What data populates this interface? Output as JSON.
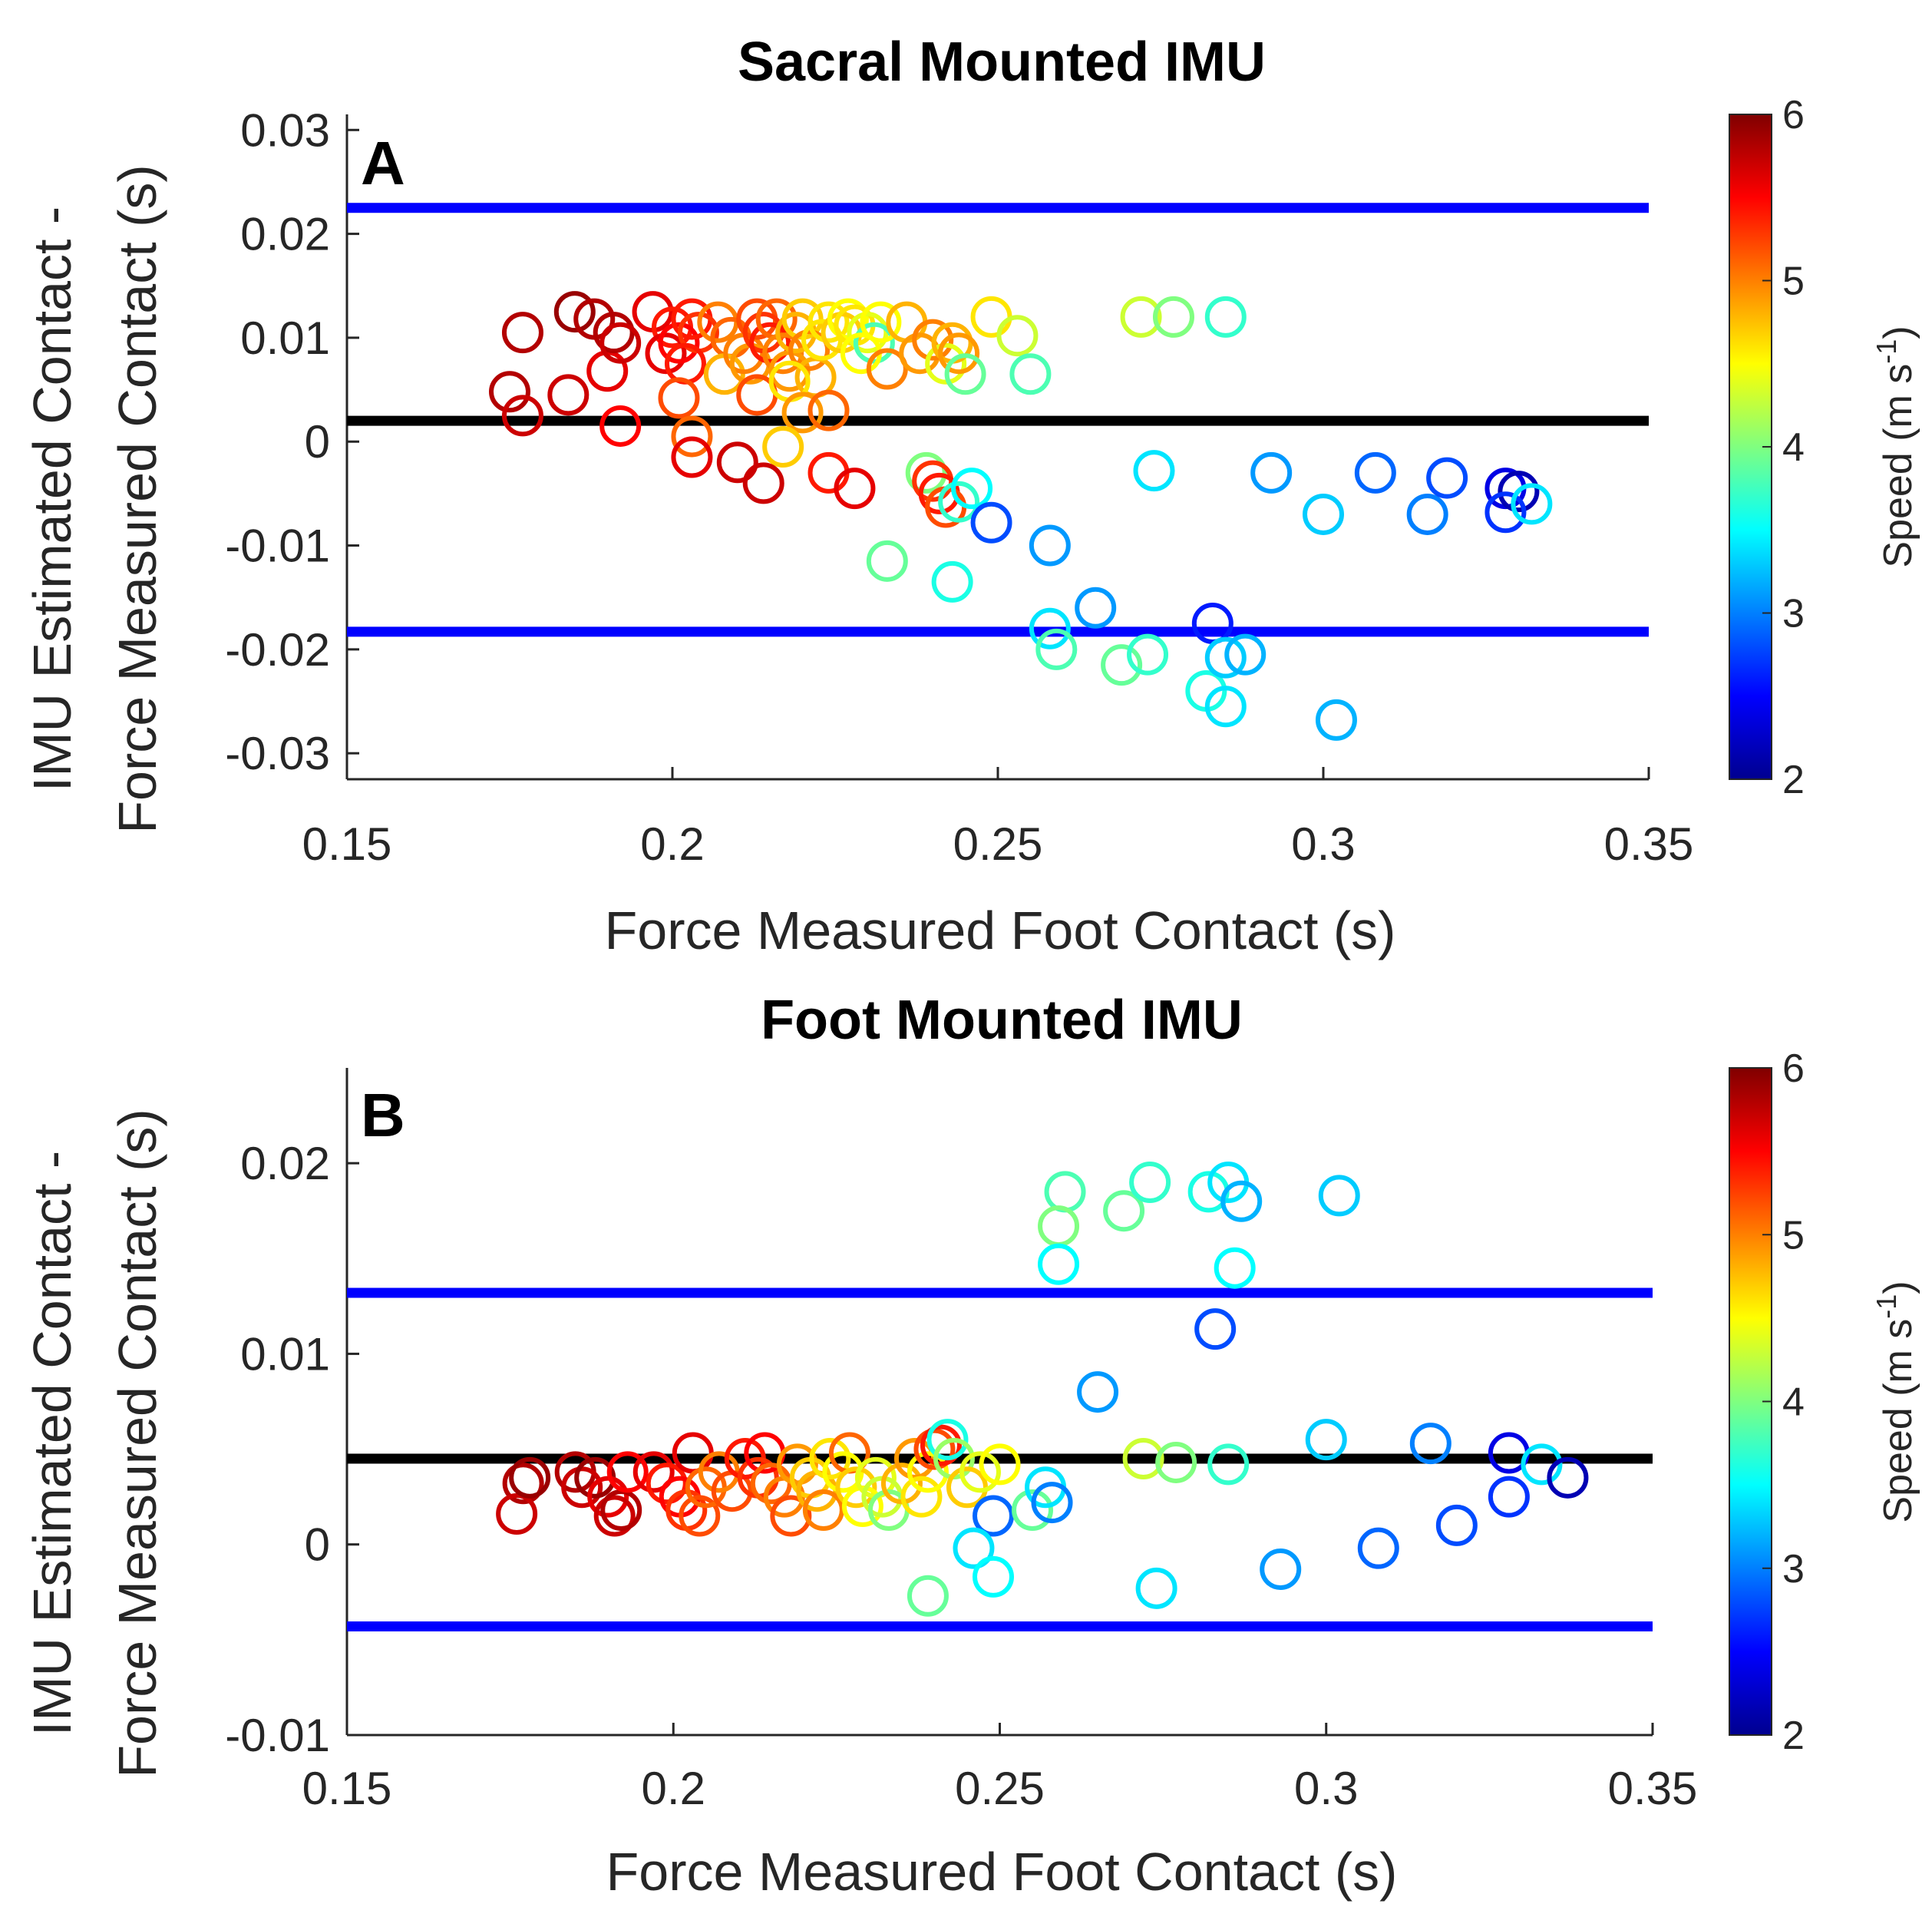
{
  "chart_data": [
    {
      "type": "scatter",
      "panel_letter": "A",
      "title": "Sacral Mounted IMU",
      "xlabel": "Force Measured Foot Contact (s)",
      "ylabel_line1": "IMU Estimated Contact -",
      "ylabel_line2": "Force Measured Contact (s)",
      "xlim": [
        0.15,
        0.35
      ],
      "ylim": [
        -0.0325,
        0.0315
      ],
      "xticks": [
        0.15,
        0.2,
        0.25,
        0.3,
        0.35
      ],
      "xtick_labels": [
        "0.15",
        "0.2",
        "0.25",
        "0.3",
        "0.35"
      ],
      "yticks": [
        -0.03,
        -0.02,
        -0.01,
        0,
        0.01,
        0.02,
        0.03
      ],
      "ytick_labels": [
        "-0.03",
        "-0.02",
        "-0.01",
        "0",
        "0.01",
        "0.02",
        "0.03"
      ],
      "reference_lines": [
        {
          "name": "upper-limit",
          "y": 0.0225,
          "color": "#0000ff"
        },
        {
          "name": "mean-bias",
          "y": 0.002,
          "color": "#000000"
        },
        {
          "name": "lower-limit",
          "y": -0.0183,
          "color": "#0000ff"
        }
      ],
      "colorbar": {
        "label": "Speed (m s",
        "label_sup": "-1",
        "label_close": ")",
        "min": 2,
        "max": 6,
        "ticks": [
          "2",
          "3",
          "4",
          "5",
          "6"
        ]
      },
      "points": [
        [
          0.177,
          0.0105,
          5.8
        ],
        [
          0.175,
          0.0048,
          5.8
        ],
        [
          0.177,
          0.0025,
          5.7
        ],
        [
          0.185,
          0.0125,
          5.9
        ],
        [
          0.188,
          0.0118,
          5.8
        ],
        [
          0.184,
          0.0045,
          5.7
        ],
        [
          0.19,
          0.0068,
          5.6
        ],
        [
          0.191,
          0.0105,
          5.8
        ],
        [
          0.192,
          0.0095,
          5.7
        ],
        [
          0.192,
          0.0015,
          5.5
        ],
        [
          0.197,
          0.0125,
          5.6
        ],
        [
          0.2,
          0.011,
          5.4
        ],
        [
          0.199,
          0.0085,
          5.6
        ],
        [
          0.201,
          0.0095,
          5.5
        ],
        [
          0.203,
          0.0118,
          5.4
        ],
        [
          0.204,
          0.0105,
          5.3
        ],
        [
          0.202,
          0.0075,
          5.4
        ],
        [
          0.201,
          0.0042,
          5.2
        ],
        [
          0.203,
          0.0005,
          5.1
        ],
        [
          0.203,
          -0.0015,
          5.6
        ],
        [
          0.207,
          0.0115,
          5.0
        ],
        [
          0.209,
          0.01,
          5.1
        ],
        [
          0.208,
          0.0065,
          4.8
        ],
        [
          0.211,
          0.0085,
          5.0
        ],
        [
          0.212,
          0.0075,
          4.9
        ],
        [
          0.213,
          0.0118,
          5.2
        ],
        [
          0.214,
          0.0105,
          5.3
        ],
        [
          0.215,
          0.0095,
          5.4
        ],
        [
          0.216,
          0.0118,
          5.1
        ],
        [
          0.217,
          0.0085,
          5.0
        ],
        [
          0.218,
          0.0068,
          4.9
        ],
        [
          0.219,
          0.0105,
          4.8
        ],
        [
          0.22,
          0.0118,
          4.7
        ],
        [
          0.221,
          0.0088,
          5.0
        ],
        [
          0.222,
          0.0062,
          4.8
        ],
        [
          0.223,
          0.0098,
          4.6
        ],
        [
          0.224,
          0.0115,
          4.6
        ],
        [
          0.226,
          0.0105,
          4.7
        ],
        [
          0.227,
          0.0118,
          4.5
        ],
        [
          0.228,
          0.0112,
          4.6
        ],
        [
          0.23,
          0.0105,
          4.4
        ],
        [
          0.231,
          0.0095,
          3.8
        ],
        [
          0.229,
          0.0085,
          4.5
        ],
        [
          0.233,
          0.007,
          5.0
        ],
        [
          0.232,
          0.0115,
          4.5
        ],
        [
          0.236,
          0.0115,
          4.8
        ],
        [
          0.238,
          0.0085,
          4.9
        ],
        [
          0.24,
          0.0098,
          5.0
        ],
        [
          0.242,
          0.0075,
          4.4
        ],
        [
          0.243,
          0.0095,
          4.8
        ],
        [
          0.244,
          0.0085,
          4.9
        ],
        [
          0.245,
          0.0065,
          3.9
        ],
        [
          0.249,
          0.012,
          4.6
        ],
        [
          0.253,
          0.0102,
          4.3
        ],
        [
          0.255,
          0.0065,
          3.8
        ],
        [
          0.213,
          0.0045,
          5.2
        ],
        [
          0.218,
          0.0058,
          4.6
        ],
        [
          0.22,
          0.0028,
          4.9
        ],
        [
          0.224,
          0.003,
          5.1
        ],
        [
          0.217,
          -0.0005,
          4.7
        ],
        [
          0.21,
          -0.002,
          5.7
        ],
        [
          0.214,
          -0.004,
          5.7
        ],
        [
          0.224,
          -0.003,
          5.4
        ],
        [
          0.228,
          -0.0045,
          5.6
        ],
        [
          0.239,
          -0.003,
          4.0
        ],
        [
          0.24,
          -0.0038,
          5.3
        ],
        [
          0.241,
          -0.005,
          5.4
        ],
        [
          0.242,
          -0.0063,
          5.2
        ],
        [
          0.244,
          -0.0058,
          3.7
        ],
        [
          0.246,
          -0.0045,
          3.5
        ],
        [
          0.249,
          -0.0078,
          2.8
        ],
        [
          0.233,
          -0.0115,
          3.9
        ],
        [
          0.243,
          -0.0135,
          3.6
        ],
        [
          0.258,
          -0.01,
          3.1
        ],
        [
          0.258,
          -0.018,
          3.4
        ],
        [
          0.259,
          -0.02,
          3.8
        ],
        [
          0.265,
          -0.016,
          3.1
        ],
        [
          0.269,
          -0.0215,
          3.9
        ],
        [
          0.273,
          -0.0205,
          3.7
        ],
        [
          0.282,
          -0.024,
          3.6
        ],
        [
          0.285,
          -0.0255,
          3.4
        ],
        [
          0.283,
          -0.0175,
          2.6
        ],
        [
          0.285,
          -0.0208,
          3.3
        ],
        [
          0.288,
          -0.0205,
          3.2
        ],
        [
          0.302,
          -0.0268,
          3.2
        ],
        [
          0.274,
          -0.0028,
          3.4
        ],
        [
          0.272,
          0.012,
          4.3
        ],
        [
          0.277,
          0.012,
          4.0
        ],
        [
          0.285,
          0.012,
          3.7
        ],
        [
          0.292,
          -0.003,
          3.1
        ],
        [
          0.3,
          -0.007,
          3.3
        ],
        [
          0.308,
          -0.003,
          2.9
        ],
        [
          0.316,
          -0.007,
          3.0
        ],
        [
          0.319,
          -0.0035,
          2.8
        ],
        [
          0.328,
          -0.0045,
          2.4
        ],
        [
          0.33,
          -0.0048,
          2.2
        ],
        [
          0.328,
          -0.0068,
          2.7
        ],
        [
          0.332,
          -0.006,
          3.4
        ]
      ]
    },
    {
      "type": "scatter",
      "panel_letter": "B",
      "title": "Foot Mounted IMU",
      "xlabel": "Force Measured Foot Contact (s)",
      "ylabel_line1": "IMU Estimated Contact -",
      "ylabel_line2": "Force Measured Contact (s)",
      "xlim": [
        0.15,
        0.35
      ],
      "ylim": [
        -0.01,
        0.025
      ],
      "xticks": [
        0.15,
        0.2,
        0.25,
        0.3,
        0.35
      ],
      "xtick_labels": [
        "0.15",
        "0.2",
        "0.25",
        "0.3",
        "0.35"
      ],
      "yticks": [
        -0.01,
        0,
        0.01,
        0.02
      ],
      "ytick_labels": [
        "-0.01",
        "0",
        "0.01",
        "0.02"
      ],
      "reference_lines": [
        {
          "name": "upper-limit",
          "y": 0.0132,
          "color": "#0000ff"
        },
        {
          "name": "mean-bias",
          "y": 0.0045,
          "color": "#000000"
        },
        {
          "name": "lower-limit",
          "y": -0.0043,
          "color": "#0000ff"
        }
      ],
      "colorbar": {
        "label": "Speed (m s",
        "label_sup": "-1",
        "label_close": ")",
        "min": 2,
        "max": 6,
        "ticks": [
          "2",
          "3",
          "4",
          "5",
          "6"
        ]
      },
      "points": [
        [
          0.177,
          0.0032,
          5.8
        ],
        [
          0.176,
          0.0016,
          5.7
        ],
        [
          0.178,
          0.0035,
          5.9
        ],
        [
          0.185,
          0.0038,
          5.8
        ],
        [
          0.186,
          0.003,
          5.7
        ],
        [
          0.188,
          0.0035,
          5.9
        ],
        [
          0.19,
          0.0025,
          5.6
        ],
        [
          0.191,
          0.0015,
          5.7
        ],
        [
          0.192,
          0.0018,
          5.8
        ],
        [
          0.193,
          0.0038,
          5.5
        ],
        [
          0.197,
          0.0038,
          5.6
        ],
        [
          0.199,
          0.0032,
          5.4
        ],
        [
          0.201,
          0.0025,
          5.5
        ],
        [
          0.202,
          0.0018,
          5.3
        ],
        [
          0.203,
          0.0048,
          5.6
        ],
        [
          0.204,
          0.0015,
          5.2
        ],
        [
          0.205,
          0.003,
          5.1
        ],
        [
          0.207,
          0.0038,
          5.0
        ],
        [
          0.209,
          0.0028,
          5.2
        ],
        [
          0.211,
          0.0045,
          5.4
        ],
        [
          0.213,
          0.0035,
          5.3
        ],
        [
          0.214,
          0.0048,
          5.5
        ],
        [
          0.215,
          0.0032,
          5.1
        ],
        [
          0.217,
          0.0025,
          5.0
        ],
        [
          0.218,
          0.0015,
          5.2
        ],
        [
          0.219,
          0.0042,
          4.9
        ],
        [
          0.221,
          0.0035,
          4.7
        ],
        [
          0.222,
          0.0028,
          4.8
        ],
        [
          0.223,
          0.0018,
          5.0
        ],
        [
          0.224,
          0.0045,
          4.6
        ],
        [
          0.226,
          0.0038,
          4.5
        ],
        [
          0.227,
          0.0048,
          5.1
        ],
        [
          0.228,
          0.003,
          4.7
        ],
        [
          0.229,
          0.002,
          4.5
        ],
        [
          0.231,
          0.0035,
          4.4
        ],
        [
          0.232,
          0.0025,
          4.3
        ],
        [
          0.233,
          0.0018,
          4.0
        ],
        [
          0.235,
          0.0032,
          4.8
        ],
        [
          0.237,
          0.0045,
          4.9
        ],
        [
          0.238,
          0.0025,
          4.6
        ],
        [
          0.239,
          0.0038,
          4.5
        ],
        [
          0.24,
          0.005,
          5.2
        ],
        [
          0.241,
          0.0052,
          5.4
        ],
        [
          0.242,
          0.0055,
          3.6
        ],
        [
          0.243,
          0.0045,
          4.1
        ],
        [
          0.245,
          0.003,
          4.7
        ],
        [
          0.247,
          0.0038,
          4.4
        ],
        [
          0.25,
          0.0042,
          4.5
        ],
        [
          0.249,
          0.0015,
          2.9
        ],
        [
          0.255,
          0.0018,
          3.9
        ],
        [
          0.257,
          0.003,
          3.4
        ],
        [
          0.258,
          0.0022,
          3.0
        ],
        [
          0.239,
          -0.0027,
          3.9
        ],
        [
          0.246,
          -0.0002,
          3.4
        ],
        [
          0.249,
          -0.0017,
          3.5
        ],
        [
          0.26,
          0.0185,
          3.8
        ],
        [
          0.259,
          0.0167,
          4.0
        ],
        [
          0.259,
          0.0147,
          3.5
        ],
        [
          0.269,
          0.0175,
          3.9
        ],
        [
          0.273,
          0.019,
          3.7
        ],
        [
          0.282,
          0.0185,
          3.6
        ],
        [
          0.285,
          0.019,
          3.4
        ],
        [
          0.287,
          0.018,
          3.2
        ],
        [
          0.286,
          0.0145,
          3.5
        ],
        [
          0.283,
          0.0113,
          2.8
        ],
        [
          0.302,
          0.0183,
          3.3
        ],
        [
          0.265,
          0.008,
          3.1
        ],
        [
          0.272,
          0.0045,
          4.3
        ],
        [
          0.277,
          0.0043,
          4.0
        ],
        [
          0.285,
          0.0042,
          3.7
        ],
        [
          0.274,
          -0.0023,
          3.4
        ],
        [
          0.293,
          -0.0013,
          3.1
        ],
        [
          0.3,
          0.0055,
          3.3
        ],
        [
          0.308,
          -0.0002,
          2.9
        ],
        [
          0.316,
          0.0053,
          3.0
        ],
        [
          0.32,
          0.001,
          2.8
        ],
        [
          0.328,
          0.0048,
          2.4
        ],
        [
          0.328,
          0.0025,
          2.7
        ],
        [
          0.333,
          0.0042,
          3.4
        ],
        [
          0.337,
          0.0035,
          2.2
        ]
      ]
    }
  ]
}
